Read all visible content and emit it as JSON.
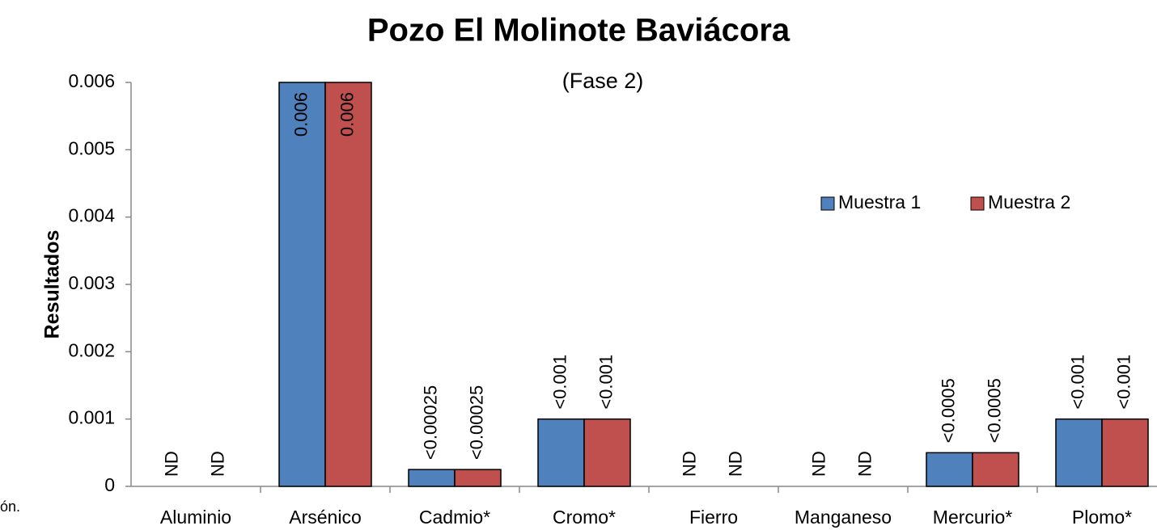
{
  "chart_data": {
    "type": "bar",
    "title": "Pozo El Molinote Baviácora",
    "subtitle": "(Fase 2)",
    "y_label": "Resultados",
    "side_note": "ón.",
    "categories": [
      "Aluminio",
      "Arsénico",
      "Cadmio*",
      "Cromo*",
      "Fierro",
      "Manganeso",
      "Mercurio*",
      "Plomo*"
    ],
    "series": [
      {
        "name": "Muestra 1",
        "color": "#4f81bd",
        "values": [
          null,
          0.006,
          0.00025,
          0.001,
          null,
          null,
          0.0005,
          0.001
        ],
        "value_labels": [
          "ND",
          "0.006",
          "<0.00025",
          "<0.001",
          "ND",
          "ND",
          "<0.0005",
          "<0.001"
        ]
      },
      {
        "name": "Muestra 2",
        "color": "#c0504d",
        "values": [
          null,
          0.006,
          0.00025,
          0.001,
          null,
          null,
          0.0005,
          0.001
        ],
        "value_labels": [
          "ND",
          "0.006",
          "<0.00025",
          "<0.001",
          "ND",
          "ND",
          "<0.0005",
          "<0.001"
        ]
      }
    ],
    "ylim": [
      0,
      0.006
    ],
    "yticks": [
      0,
      0.001,
      0.002,
      0.003,
      0.004,
      0.005,
      0.006
    ],
    "legend": "upper right"
  }
}
